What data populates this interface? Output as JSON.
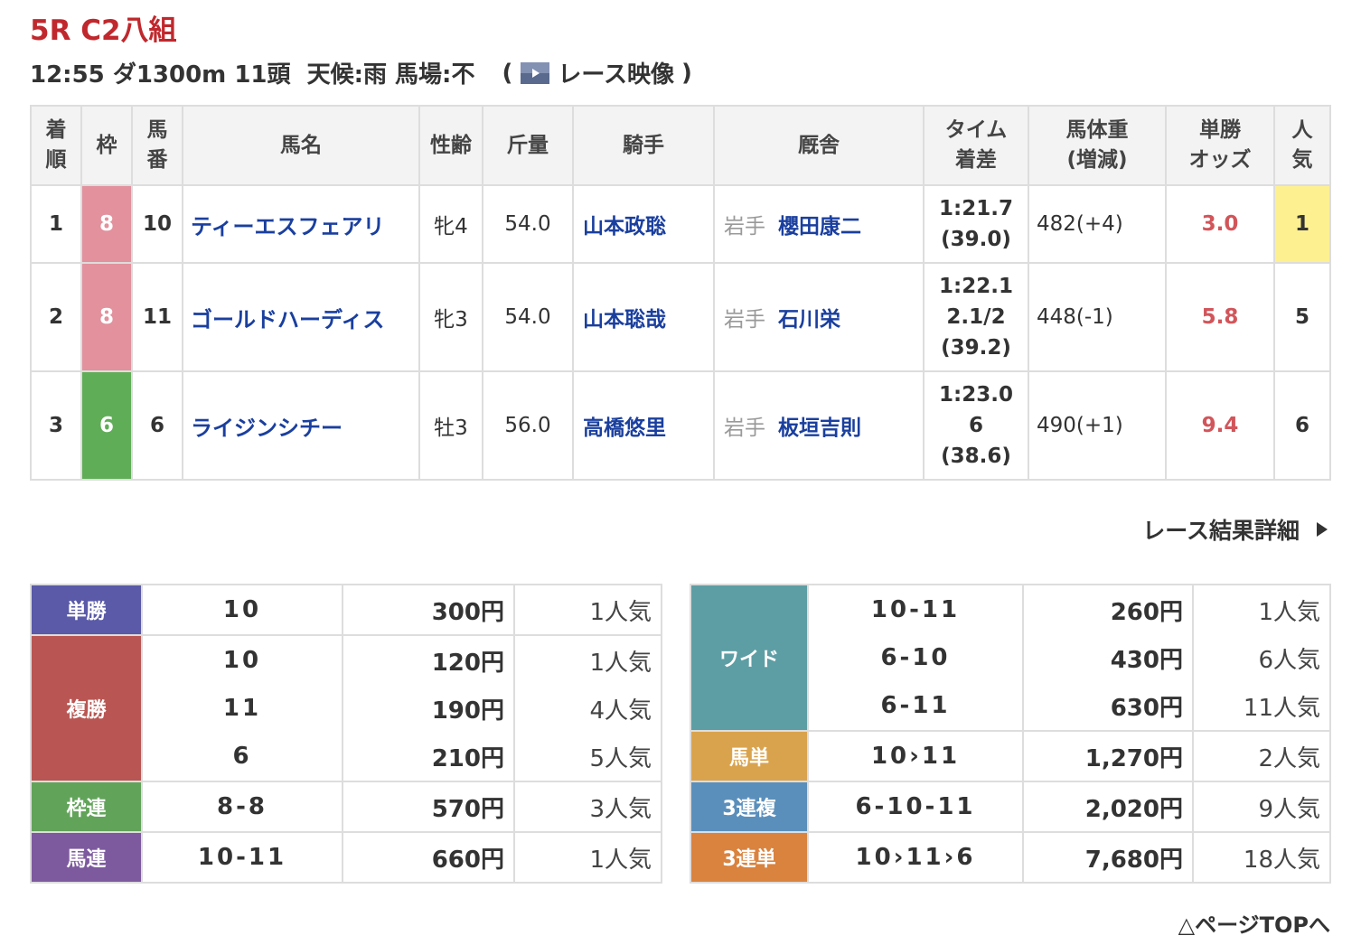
{
  "header": {
    "title": "5R C2八組",
    "info": "12:55 ダ1300m 11頭  天候:雨 馬場:不",
    "video_open": "(",
    "video_link": "レース映像",
    "video_close": ")"
  },
  "results": {
    "columns": [
      "着\n順",
      "枠",
      "馬\n番",
      "馬名",
      "性齢",
      "斤量",
      "騎手",
      "厩舎",
      "タイム\n着差",
      "馬体重\n(増減)",
      "単勝\nオッズ",
      "人\n気"
    ],
    "rows": [
      {
        "rank": "1",
        "frame": "8",
        "frame_color": "#e2919d",
        "number": "10",
        "horse": "ティーエスフェアリ",
        "sex_age": "牝4",
        "weight": "54.0",
        "jockey": "山本政聡",
        "region": "岩手",
        "trainer": "櫻田康二",
        "time": [
          "1:21.7",
          "(39.0)"
        ],
        "body_weight": "482(+4)",
        "odds": "3.0",
        "popularity": "1",
        "popularity_color": "#fdf091"
      },
      {
        "rank": "2",
        "frame": "8",
        "frame_color": "#e2919d",
        "number": "11",
        "horse": "ゴールドハーディス",
        "sex_age": "牝3",
        "weight": "54.0",
        "jockey": "山本聡哉",
        "region": "岩手",
        "trainer": "石川栄",
        "time": [
          "1:22.1",
          "2.1/2",
          "(39.2)"
        ],
        "body_weight": "448(-1)",
        "odds": "5.8",
        "popularity": "5"
      },
      {
        "rank": "3",
        "frame": "6",
        "frame_color": "#5fad56",
        "number": "6",
        "horse": "ライジンシチー",
        "sex_age": "牡3",
        "weight": "56.0",
        "jockey": "高橋悠里",
        "region": "岩手",
        "trainer": "板垣吉則",
        "time": [
          "1:23.0",
          "6",
          "(38.6)"
        ],
        "body_weight": "490(+1)",
        "odds": "9.4",
        "popularity": "6"
      }
    ]
  },
  "detail_link": "レース結果詳細",
  "payouts_left": [
    {
      "label": "単勝",
      "color": "#5a5aa8",
      "entries": [
        {
          "combo": "10",
          "payout": "300円",
          "popularity": "1人気"
        }
      ]
    },
    {
      "label": "複勝",
      "color": "#b95653",
      "entries": [
        {
          "combo": "10",
          "payout": "120円",
          "popularity": "1人気"
        },
        {
          "combo": "11",
          "payout": "190円",
          "popularity": "4人気"
        },
        {
          "combo": "6",
          "payout": "210円",
          "popularity": "5人気"
        }
      ]
    },
    {
      "label": "枠連",
      "color": "#62a35a",
      "entries": [
        {
          "combo": "8-8",
          "payout": "570円",
          "popularity": "3人気"
        }
      ]
    },
    {
      "label": "馬連",
      "color": "#7d5a9e",
      "entries": [
        {
          "combo": "10-11",
          "payout": "660円",
          "popularity": "1人気"
        }
      ]
    }
  ],
  "payouts_right": [
    {
      "label": "ワイド",
      "color": "#5d9ea4",
      "entries": [
        {
          "combo": "10-11",
          "payout": "260円",
          "popularity": "1人気"
        },
        {
          "combo": "6-10",
          "payout": "430円",
          "popularity": "6人気"
        },
        {
          "combo": "6-11",
          "payout": "630円",
          "popularity": "11人気"
        }
      ]
    },
    {
      "label": "馬単",
      "color": "#d9a34e",
      "entries": [
        {
          "combo": "10›11",
          "payout": "1,270円",
          "popularity": "2人気"
        }
      ]
    },
    {
      "label": "3連複",
      "color": "#5b8fbb",
      "entries": [
        {
          "combo": "6-10-11",
          "payout": "2,020円",
          "popularity": "9人気"
        }
      ]
    },
    {
      "label": "3連単",
      "color": "#d9833f",
      "entries": [
        {
          "combo": "10›11›6",
          "payout": "7,680円",
          "popularity": "18人気"
        }
      ]
    }
  ],
  "page_top": "△ページTOPへ"
}
